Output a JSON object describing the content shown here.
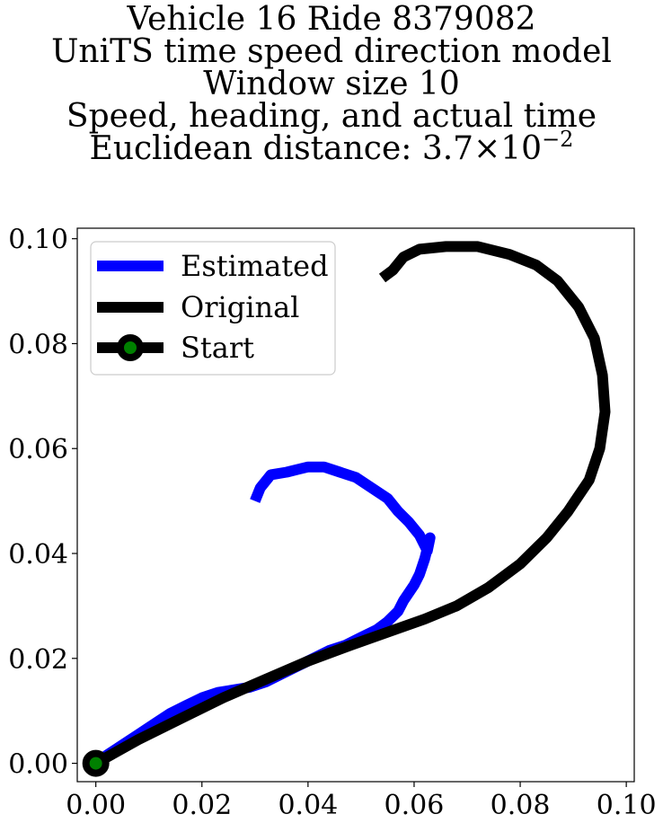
{
  "title": {
    "line1": "Vehicle 16 Ride 8379082",
    "line2": "UniTS time speed direction model",
    "line3": "Window size 10",
    "line4": "Speed, heading, and actual time",
    "line5_prefix": "Euclidean distance: 3.7×10",
    "line5_exp": "−2"
  },
  "chart_data": {
    "type": "line",
    "xlim": [
      -0.0035,
      0.1015
    ],
    "ylim": [
      -0.0035,
      0.102
    ],
    "xticks": [
      "0.00",
      "0.02",
      "0.04",
      "0.06",
      "0.08",
      "0.10"
    ],
    "xtick_values": [
      0.0,
      0.02,
      0.04,
      0.06,
      0.08,
      0.1
    ],
    "yticks": [
      "0.00",
      "0.02",
      "0.04",
      "0.06",
      "0.08",
      "0.10"
    ],
    "ytick_values": [
      0.0,
      0.02,
      0.04,
      0.06,
      0.08,
      0.1
    ],
    "grid": false,
    "legend_position": "upper-left",
    "series": [
      {
        "name": "Estimated",
        "color": "#0000ff",
        "points": [
          [
            0.0,
            0.0
          ],
          [
            0.002,
            0.0015
          ],
          [
            0.005,
            0.0035
          ],
          [
            0.008,
            0.0055
          ],
          [
            0.011,
            0.0075
          ],
          [
            0.014,
            0.0095
          ],
          [
            0.017,
            0.011
          ],
          [
            0.02,
            0.0125
          ],
          [
            0.023,
            0.0135
          ],
          [
            0.026,
            0.014
          ],
          [
            0.029,
            0.0145
          ],
          [
            0.032,
            0.0155
          ],
          [
            0.035,
            0.017
          ],
          [
            0.038,
            0.0185
          ],
          [
            0.041,
            0.02
          ],
          [
            0.044,
            0.0215
          ],
          [
            0.047,
            0.0225
          ],
          [
            0.05,
            0.024
          ],
          [
            0.053,
            0.0255
          ],
          [
            0.055,
            0.027
          ],
          [
            0.057,
            0.029
          ],
          [
            0.058,
            0.031
          ],
          [
            0.06,
            0.034
          ],
          [
            0.061,
            0.036
          ],
          [
            0.062,
            0.039
          ],
          [
            0.0625,
            0.041
          ],
          [
            0.063,
            0.043
          ],
          [
            0.0625,
            0.0405
          ],
          [
            0.061,
            0.0435
          ],
          [
            0.059,
            0.046
          ],
          [
            0.057,
            0.048
          ],
          [
            0.055,
            0.0505
          ],
          [
            0.052,
            0.0525
          ],
          [
            0.049,
            0.0545
          ],
          [
            0.046,
            0.0555
          ],
          [
            0.043,
            0.0565
          ],
          [
            0.04,
            0.0565
          ],
          [
            0.038,
            0.056
          ],
          [
            0.036,
            0.0555
          ],
          [
            0.033,
            0.055
          ],
          [
            0.031,
            0.0525
          ],
          [
            0.03,
            0.05
          ]
        ]
      },
      {
        "name": "Original",
        "color": "#000000",
        "points": [
          [
            0.0,
            0.0
          ],
          [
            0.008,
            0.0045
          ],
          [
            0.016,
            0.0085
          ],
          [
            0.024,
            0.0125
          ],
          [
            0.032,
            0.016
          ],
          [
            0.04,
            0.0195
          ],
          [
            0.048,
            0.0225
          ],
          [
            0.055,
            0.025
          ],
          [
            0.062,
            0.0275
          ],
          [
            0.068,
            0.03
          ],
          [
            0.074,
            0.0335
          ],
          [
            0.08,
            0.038
          ],
          [
            0.085,
            0.043
          ],
          [
            0.089,
            0.048
          ],
          [
            0.093,
            0.054
          ],
          [
            0.095,
            0.06
          ],
          [
            0.096,
            0.067
          ],
          [
            0.0955,
            0.074
          ],
          [
            0.094,
            0.081
          ],
          [
            0.091,
            0.087
          ],
          [
            0.087,
            0.092
          ],
          [
            0.083,
            0.095
          ],
          [
            0.078,
            0.097
          ],
          [
            0.072,
            0.0985
          ],
          [
            0.066,
            0.0985
          ],
          [
            0.061,
            0.098
          ],
          [
            0.058,
            0.0965
          ],
          [
            0.056,
            0.094
          ],
          [
            0.054,
            0.0925
          ]
        ]
      }
    ],
    "start_point": {
      "name": "Start",
      "x": 0.0,
      "y": 0.0,
      "color": "#008000"
    }
  },
  "legend": {
    "estimated": "Estimated",
    "original": "Original",
    "start": "Start"
  }
}
